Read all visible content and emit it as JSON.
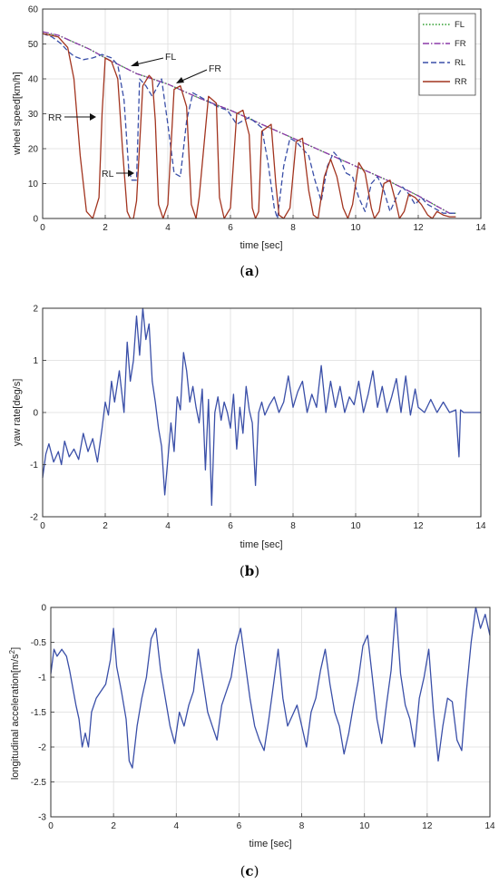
{
  "chart_data": [
    {
      "id": "a",
      "type": "line",
      "caption_letter": "a",
      "xlabel": "time [sec]",
      "ylabel": "wheel speed[km/h]",
      "xlim": [
        0,
        14
      ],
      "ylim": [
        0,
        60
      ],
      "xticks": [
        0,
        2,
        4,
        6,
        8,
        10,
        12,
        14
      ],
      "yticks": [
        0,
        10,
        20,
        30,
        40,
        50,
        60
      ],
      "grid": true,
      "legend_position": "top-right",
      "series": [
        {
          "name": "FL",
          "color": "#2e9e2e",
          "dash": "dotted",
          "x": [
            0,
            0.5,
            1,
            1.5,
            2,
            3,
            4,
            5,
            6,
            7,
            8,
            9,
            10,
            11,
            12,
            12.5,
            13,
            13.2
          ],
          "y": [
            53,
            52.5,
            50.5,
            48.5,
            46,
            41.5,
            38.5,
            34.5,
            31,
            27,
            23,
            19,
            15,
            11,
            6.5,
            4,
            1.5,
            1.5
          ]
        },
        {
          "name": "FR",
          "color": "#8b3aa8",
          "dash": "dashdot",
          "x": [
            0,
            0.5,
            1,
            1.5,
            2,
            3,
            4,
            5,
            6,
            7,
            8,
            9,
            10,
            11,
            12,
            12.5,
            13,
            13.2
          ],
          "y": [
            53.5,
            52.5,
            50.5,
            48.5,
            46,
            41.5,
            38.5,
            34.5,
            31,
            27,
            23,
            19,
            15,
            11,
            6.5,
            4,
            1.5,
            1.5
          ]
        },
        {
          "name": "RL",
          "color": "#3a4fa8",
          "dash": "dashed",
          "x": [
            0,
            0.3,
            0.6,
            0.8,
            1.0,
            1.3,
            1.6,
            1.9,
            2.2,
            2.4,
            2.6,
            2.75,
            2.85,
            3.0,
            3.1,
            3.3,
            3.5,
            3.8,
            4.0,
            4.2,
            4.4,
            4.6,
            4.8,
            5.2,
            5.6,
            5.9,
            6.2,
            6.6,
            7.0,
            7.2,
            7.4,
            7.5,
            7.7,
            7.9,
            8.1,
            8.3,
            8.5,
            8.7,
            8.9,
            9.1,
            9.3,
            9.5,
            9.7,
            9.9,
            10.1,
            10.3,
            10.5,
            10.7,
            10.9,
            11.1,
            11.3,
            11.5,
            11.7,
            11.9,
            12.1,
            12.3,
            12.5,
            12.8,
            13.2
          ],
          "y": [
            53,
            52,
            50,
            48,
            46.5,
            45.5,
            46,
            47,
            46,
            44,
            34,
            14,
            11,
            11,
            40,
            38,
            35,
            40,
            27,
            13,
            12,
            28,
            36,
            34,
            32,
            31,
            27,
            29,
            26,
            16,
            3,
            0,
            15,
            23,
            22,
            20,
            18,
            11,
            5,
            15,
            19,
            17,
            13,
            12,
            6,
            2,
            10,
            12,
            8,
            2,
            6,
            9,
            7,
            4,
            6,
            4,
            3,
            1.5,
            1.5
          ]
        },
        {
          "name": "RR",
          "color": "#a2341f",
          "dash": "solid",
          "x": [
            0,
            0.5,
            0.8,
            1.0,
            1.2,
            1.4,
            1.6,
            1.8,
            1.9,
            2.0,
            2.2,
            2.4,
            2.55,
            2.7,
            2.8,
            2.9,
            3.0,
            3.2,
            3.4,
            3.5,
            3.6,
            3.7,
            3.85,
            4.0,
            4.2,
            4.4,
            4.6,
            4.75,
            4.9,
            5.0,
            5.3,
            5.55,
            5.65,
            5.8,
            6.0,
            6.2,
            6.4,
            6.6,
            6.7,
            6.8,
            6.9,
            7.0,
            7.3,
            7.45,
            7.55,
            7.7,
            7.9,
            8.1,
            8.3,
            8.5,
            8.65,
            8.8,
            9.0,
            9.2,
            9.4,
            9.6,
            9.75,
            9.9,
            10.1,
            10.3,
            10.5,
            10.6,
            10.75,
            10.9,
            11.1,
            11.3,
            11.4,
            11.55,
            11.7,
            11.9,
            12.1,
            12.3,
            12.45,
            12.6,
            12.8,
            13.0,
            13.2
          ],
          "y": [
            53,
            52,
            49,
            40,
            18,
            2,
            0,
            6,
            30,
            46,
            45,
            40,
            20,
            2,
            0,
            0,
            5,
            38,
            41,
            40,
            28,
            4,
            0,
            4,
            37,
            38,
            32,
            4,
            0,
            6,
            35,
            33,
            6,
            0,
            3,
            30,
            31,
            24,
            3,
            0,
            2,
            25,
            27,
            10,
            1,
            0,
            3,
            22,
            23,
            8,
            1,
            0,
            12,
            17,
            12,
            3,
            0,
            4,
            16,
            13,
            3,
            0,
            2,
            10,
            11,
            4,
            0,
            2,
            7,
            6,
            4,
            1,
            0,
            2,
            1,
            0.5,
            0.5
          ]
        }
      ],
      "annotations": [
        {
          "text": "FL",
          "x": 3.05,
          "y": 55.5
        },
        {
          "text": "FR",
          "x": 5.5,
          "y": 50.5
        },
        {
          "text": "RR",
          "x": 0.6,
          "y": 34.5
        },
        {
          "text": "RL",
          "x": 2.0,
          "y": 14.5
        }
      ]
    },
    {
      "id": "b",
      "type": "line",
      "caption_letter": "b",
      "xlabel": "time [sec]",
      "ylabel": "yaw rate[deg/s]",
      "xlim": [
        0,
        14
      ],
      "ylim": [
        -2,
        2
      ],
      "xticks": [
        0,
        2,
        4,
        6,
        8,
        10,
        12,
        14
      ],
      "yticks": [
        -2,
        -1,
        0,
        1,
        2
      ],
      "grid": true,
      "series": [
        {
          "name": "",
          "color": "#3a4fa8",
          "x": [
            0,
            0.1,
            0.2,
            0.35,
            0.5,
            0.6,
            0.7,
            0.85,
            1.0,
            1.15,
            1.3,
            1.45,
            1.6,
            1.75,
            1.9,
            2.0,
            2.1,
            2.2,
            2.3,
            2.45,
            2.6,
            2.7,
            2.8,
            2.9,
            3.0,
            3.1,
            3.2,
            3.3,
            3.4,
            3.5,
            3.6,
            3.7,
            3.8,
            3.9,
            4.0,
            4.1,
            4.2,
            4.3,
            4.4,
            4.5,
            4.6,
            4.7,
            4.8,
            4.9,
            5.0,
            5.1,
            5.2,
            5.3,
            5.4,
            5.5,
            5.6,
            5.7,
            5.8,
            5.9,
            6.0,
            6.1,
            6.2,
            6.3,
            6.4,
            6.5,
            6.6,
            6.7,
            6.8,
            6.9,
            7.0,
            7.1,
            7.25,
            7.4,
            7.55,
            7.7,
            7.85,
            8.0,
            8.15,
            8.3,
            8.45,
            8.6,
            8.75,
            8.9,
            9.05,
            9.2,
            9.35,
            9.5,
            9.65,
            9.8,
            9.95,
            10.1,
            10.25,
            10.4,
            10.55,
            10.7,
            10.85,
            11.0,
            11.15,
            11.3,
            11.45,
            11.6,
            11.75,
            11.9,
            12.0,
            12.2,
            12.4,
            12.6,
            12.8,
            13.0,
            13.2,
            13.3,
            13.35,
            13.45,
            13.6,
            13.8,
            14.0
          ],
          "y": [
            -1.25,
            -0.8,
            -0.6,
            -0.95,
            -0.75,
            -1.0,
            -0.55,
            -0.85,
            -0.7,
            -0.9,
            -0.4,
            -0.75,
            -0.5,
            -0.95,
            -0.3,
            0.2,
            -0.05,
            0.6,
            0.2,
            0.8,
            0.0,
            1.35,
            0.6,
            1.0,
            1.85,
            1.1,
            2.0,
            1.4,
            1.7,
            0.6,
            0.2,
            -0.3,
            -0.65,
            -1.58,
            -0.9,
            -0.2,
            -0.75,
            0.3,
            0.05,
            1.15,
            0.8,
            0.2,
            0.5,
            0.1,
            -0.2,
            0.45,
            -1.1,
            0.25,
            -1.78,
            0.0,
            0.3,
            -0.15,
            0.2,
            0.0,
            -0.3,
            0.35,
            -0.7,
            0.1,
            -0.4,
            0.5,
            0.05,
            -0.2,
            -1.4,
            0.0,
            0.2,
            -0.05,
            0.15,
            0.3,
            0.0,
            0.2,
            0.7,
            0.1,
            0.4,
            0.6,
            0.0,
            0.35,
            0.1,
            0.9,
            0.0,
            0.6,
            0.1,
            0.5,
            0.0,
            0.3,
            0.15,
            0.6,
            0.0,
            0.35,
            0.8,
            0.1,
            0.5,
            0.0,
            0.3,
            0.65,
            0.0,
            0.7,
            -0.05,
            0.45,
            0.1,
            0.0,
            0.25,
            0.0,
            0.2,
            0.0,
            0.05,
            -0.85,
            0.05,
            0.0,
            0.0,
            0.0,
            0.0
          ]
        }
      ]
    },
    {
      "id": "c",
      "type": "line",
      "caption_letter": "c",
      "xlabel": "time [sec]",
      "ylabel": "longitudinal acceleration[m/s",
      "ylabel_sup": "2",
      "ylabel_end": "]",
      "xlim": [
        0,
        14
      ],
      "ylim": [
        -3,
        0
      ],
      "xticks": [
        0,
        2,
        4,
        6,
        8,
        10,
        12,
        14
      ],
      "yticks": [
        -3,
        -2.5,
        -2,
        -1.5,
        -1,
        -0.5,
        0
      ],
      "ytick_labels": [
        "-3",
        "-2.5",
        "-2",
        "-1.5",
        "-1",
        "-0.5",
        "0"
      ],
      "grid": true,
      "series": [
        {
          "name": "",
          "color": "#3a4fa8",
          "x": [
            0,
            0.1,
            0.2,
            0.35,
            0.5,
            0.6,
            0.7,
            0.8,
            0.9,
            1.0,
            1.1,
            1.2,
            1.3,
            1.45,
            1.6,
            1.75,
            1.9,
            2.0,
            2.1,
            2.25,
            2.4,
            2.5,
            2.6,
            2.75,
            2.9,
            3.05,
            3.2,
            3.35,
            3.5,
            3.65,
            3.8,
            3.95,
            4.1,
            4.25,
            4.4,
            4.55,
            4.7,
            4.85,
            5.0,
            5.15,
            5.3,
            5.45,
            5.6,
            5.75,
            5.9,
            6.05,
            6.2,
            6.35,
            6.5,
            6.65,
            6.8,
            6.95,
            7.1,
            7.25,
            7.4,
            7.55,
            7.7,
            7.85,
            8.0,
            8.15,
            8.3,
            8.45,
            8.6,
            8.75,
            8.9,
            9.05,
            9.2,
            9.35,
            9.5,
            9.65,
            9.8,
            9.95,
            10.1,
            10.25,
            10.4,
            10.55,
            10.7,
            10.85,
            11.0,
            11.15,
            11.3,
            11.45,
            11.6,
            11.75,
            11.9,
            12.05,
            12.2,
            12.35,
            12.5,
            12.65,
            12.8,
            12.95,
            13.1,
            13.25,
            13.4,
            13.55,
            13.7,
            13.85,
            14.0
          ],
          "y": [
            -0.95,
            -0.6,
            -0.7,
            -0.6,
            -0.7,
            -0.9,
            -1.15,
            -1.4,
            -1.6,
            -2.0,
            -1.8,
            -2.0,
            -1.5,
            -1.3,
            -1.2,
            -1.1,
            -0.75,
            -0.3,
            -0.85,
            -1.2,
            -1.6,
            -2.2,
            -2.3,
            -1.7,
            -1.3,
            -1.0,
            -0.45,
            -0.3,
            -0.9,
            -1.3,
            -1.7,
            -1.95,
            -1.5,
            -1.7,
            -1.4,
            -1.2,
            -0.6,
            -1.05,
            -1.5,
            -1.7,
            -1.9,
            -1.4,
            -1.2,
            -1.0,
            -0.55,
            -0.3,
            -0.8,
            -1.3,
            -1.7,
            -1.9,
            -2.05,
            -1.6,
            -1.1,
            -0.6,
            -1.3,
            -1.7,
            -1.55,
            -1.4,
            -1.7,
            -2.0,
            -1.5,
            -1.3,
            -0.9,
            -0.6,
            -1.1,
            -1.5,
            -1.7,
            -2.1,
            -1.8,
            -1.4,
            -1.05,
            -0.55,
            -0.4,
            -1.0,
            -1.6,
            -1.95,
            -1.4,
            -0.9,
            0.0,
            -0.95,
            -1.4,
            -1.6,
            -2.0,
            -1.3,
            -1.0,
            -0.6,
            -1.5,
            -2.2,
            -1.7,
            -1.3,
            -1.35,
            -1.9,
            -2.05,
            -1.2,
            -0.5,
            0.0,
            -0.3,
            -0.1,
            -0.4
          ]
        }
      ]
    }
  ]
}
